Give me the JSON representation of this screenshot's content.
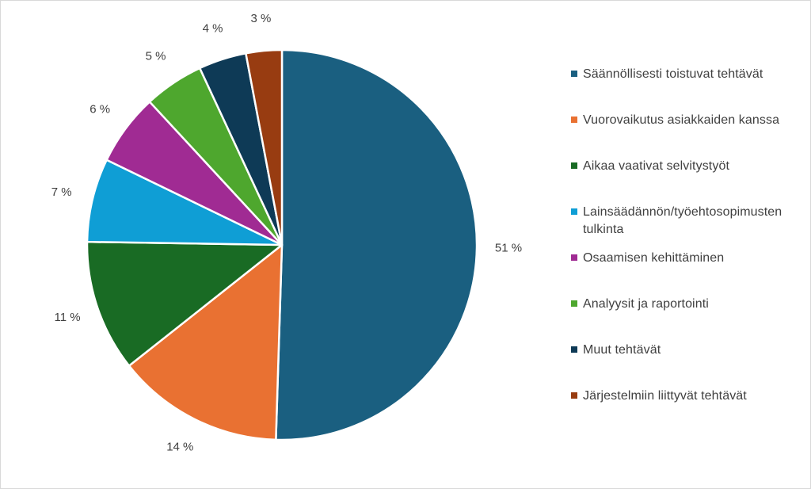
{
  "chart_data": {
    "type": "pie",
    "title": "",
    "categories": [
      "Säännöllisesti toistuvat tehtävät",
      "Vuorovaikutus asiakkaiden kanssa",
      "Aikaa vaativat selvitystyöt",
      "Lainsäädännön/työehtosopimusten tulkinta",
      "Osaamisen kehittäminen",
      "Analyysit ja raportointi",
      "Muut tehtävät",
      "Järjestelmiin liittyvät tehtävät"
    ],
    "values": [
      51,
      14,
      11,
      7,
      6,
      5,
      4,
      3
    ],
    "data_labels": [
      "51 %",
      "14 %",
      "11 %",
      "7 %",
      "6 %",
      "5 %",
      "4 %",
      "3 %"
    ],
    "colors": [
      "#1a5f80",
      "#e97132",
      "#196b24",
      "#0f9ed5",
      "#a02b93",
      "#4ea72e",
      "#0e3a56",
      "#983c11"
    ],
    "start_angle": "12 o'clock",
    "direction": "clockwise",
    "legend_position": "right",
    "label_position": "outside"
  }
}
